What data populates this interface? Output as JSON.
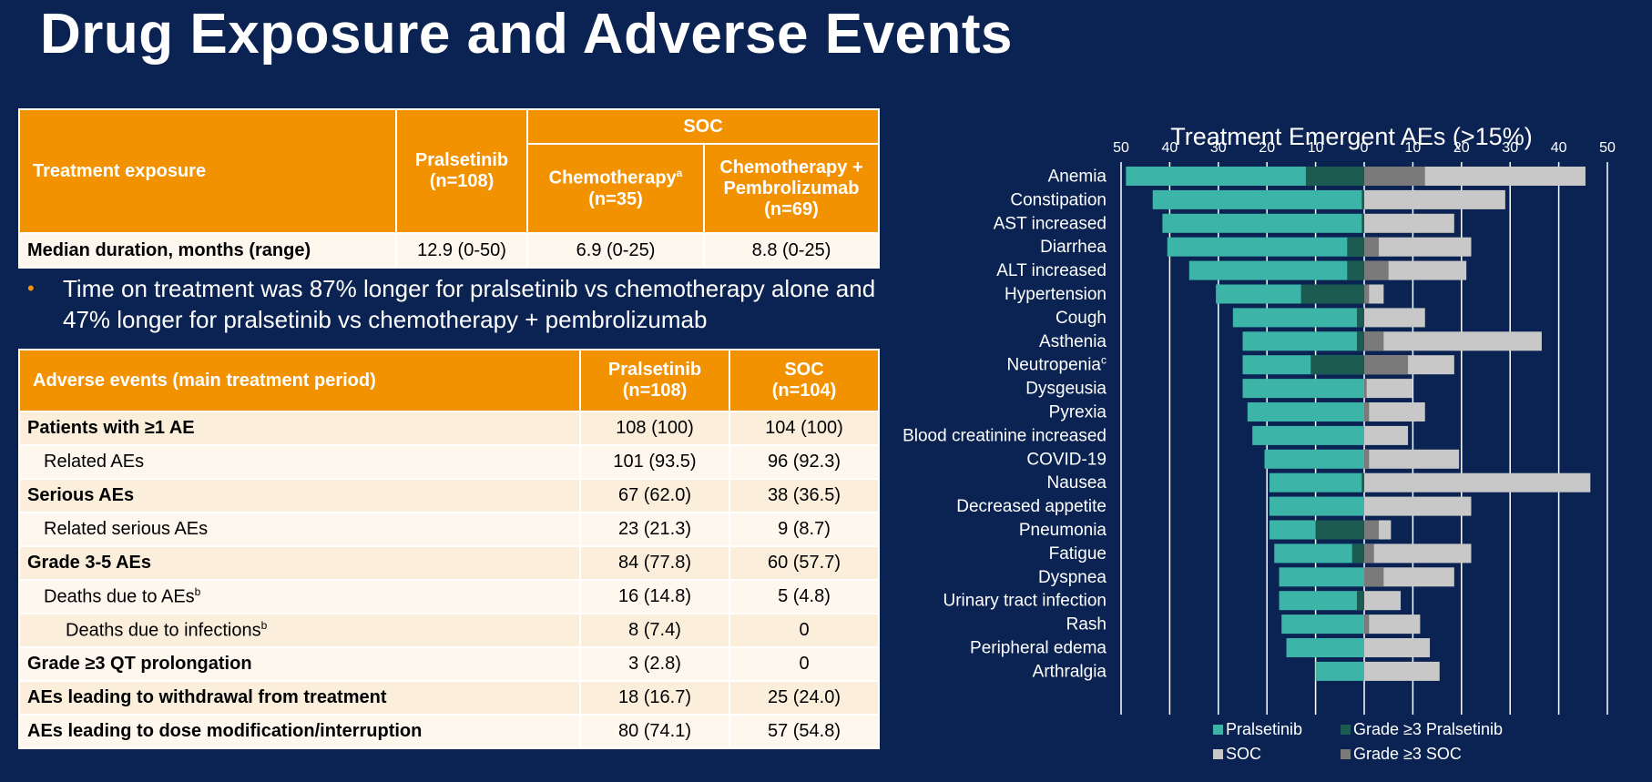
{
  "title": "Drug Exposure and Adverse Events",
  "exposure_table": {
    "header_label": "Treatment exposure",
    "soc_group": "SOC",
    "col1": "Pralsetinib\n(n=108)",
    "col2": "Chemotherapy",
    "col2_sup": "a",
    "col2_n": "(n=35)",
    "col3": "Chemotherapy +\nPembrolizumab\n(n=69)",
    "row": {
      "label": "Median duration, months (range)",
      "c1": "12.9 (0-50)",
      "c2": "6.9 (0-25)",
      "c3": "8.8 (0-25)"
    }
  },
  "bullet": {
    "marker": "•",
    "text": "Time on treatment was 87% longer for pralsetinib vs chemotherapy alone and 47% longer for pralsetinib vs chemotherapy + pembrolizumab"
  },
  "ae_table": {
    "header_label": "Adverse events (main treatment period)",
    "col1": "Pralsetinib\n(n=108)",
    "col2": "SOC\n(n=104)",
    "rows": [
      {
        "label": "Patients with ≥1 AE",
        "sup": "",
        "c1": "108 (100)",
        "c2": "104 (100)"
      },
      {
        "label": "Related AEs",
        "sup": "",
        "c1": "101 (93.5)",
        "c2": "96 (92.3)"
      },
      {
        "label": "Serious AEs",
        "sup": "",
        "c1": "67 (62.0)",
        "c2": "38 (36.5)"
      },
      {
        "label": "Related serious AEs",
        "sup": "",
        "c1": "23 (21.3)",
        "c2": "9 (8.7)"
      },
      {
        "label": "Grade 3-5 AEs",
        "sup": "",
        "c1": "84 (77.8)",
        "c2": "60 (57.7)"
      },
      {
        "label": "Deaths due to AEs",
        "sup": "b",
        "c1": "16 (14.8)",
        "c2": "5 (4.8)"
      },
      {
        "label": "Deaths due to infections",
        "sup": "b",
        "c1": "8 (7.4)",
        "c2": "0"
      },
      {
        "label": "Grade ≥3 QT prolongation",
        "sup": "",
        "c1": "3 (2.8)",
        "c2": "0"
      },
      {
        "label": "AEs leading to withdrawal from treatment",
        "sup": "",
        "c1": "18 (16.7)",
        "c2": "25 (24.0)"
      },
      {
        "label": "AEs leading to dose modification/interruption",
        "sup": "",
        "c1": "80 (74.1)",
        "c2": "57 (54.8)"
      }
    ]
  },
  "chart_data": {
    "type": "bar",
    "orientation": "horizontal-butterfly",
    "title": "Treatment Emergent AEs (>15%)",
    "x_ticks": [
      50,
      40,
      30,
      20,
      10,
      0,
      10,
      20,
      30,
      40,
      50
    ],
    "xlim": [
      -50,
      50
    ],
    "grid": true,
    "legend_position": "bottom",
    "colors": {
      "Pralsetinib": "#3cb4a7",
      "Grade ≥3 Pralsetinib": "#1b5b52",
      "SOC": "#c8c8c8",
      "Grade ≥3 SOC": "#7a7a7a"
    },
    "categories": [
      "Anemia",
      "Constipation",
      "AST increased",
      "Diarrhea",
      "ALT increased",
      "Hypertension",
      "Cough",
      "Asthenia",
      "Neutropenia",
      "Dysgeusia",
      "Pyrexia",
      "Blood creatinine increased",
      "COVID-19",
      "Nausea",
      "Decreased appetite",
      "Pneumonia",
      "Fatigue",
      "Dyspnea",
      "Urinary tract infection",
      "Rash",
      "Peripheral edema",
      "Arthralgia"
    ],
    "category_sups": [
      "",
      "",
      "",
      "",
      "",
      "",
      "",
      "",
      "c",
      "",
      "",
      "",
      "",
      "",
      "",
      "",
      "",
      "",
      "",
      "",
      "",
      ""
    ],
    "series": [
      {
        "name": "Pralsetinib",
        "values": [
          49,
          43.5,
          41.5,
          40.5,
          36,
          30.5,
          27,
          25,
          25,
          25,
          24,
          23,
          20.5,
          19.5,
          19.5,
          19.5,
          18.5,
          17.5,
          17.5,
          17,
          16,
          10
        ]
      },
      {
        "name": "Grade ≥3 Pralsetinib",
        "values": [
          12,
          0.5,
          0.5,
          3.5,
          3.5,
          13,
          1.5,
          1.5,
          11,
          0,
          0,
          0,
          0,
          0.5,
          0,
          10,
          2.5,
          0,
          1.5,
          0,
          0,
          0
        ]
      },
      {
        "name": "SOC",
        "values": [
          45.5,
          29,
          18.5,
          22,
          21,
          4,
          12.5,
          36.5,
          18.5,
          10,
          12.5,
          9,
          19.5,
          46.5,
          22,
          5.5,
          22,
          18.5,
          7.5,
          11.5,
          13.5,
          15.5
        ]
      },
      {
        "name": "Grade ≥3 SOC",
        "values": [
          12.5,
          0,
          0,
          3,
          5,
          1,
          0,
          4,
          9,
          0.5,
          1,
          0,
          1,
          0,
          0,
          3,
          2,
          4,
          0,
          1,
          0,
          0
        ]
      }
    ]
  }
}
